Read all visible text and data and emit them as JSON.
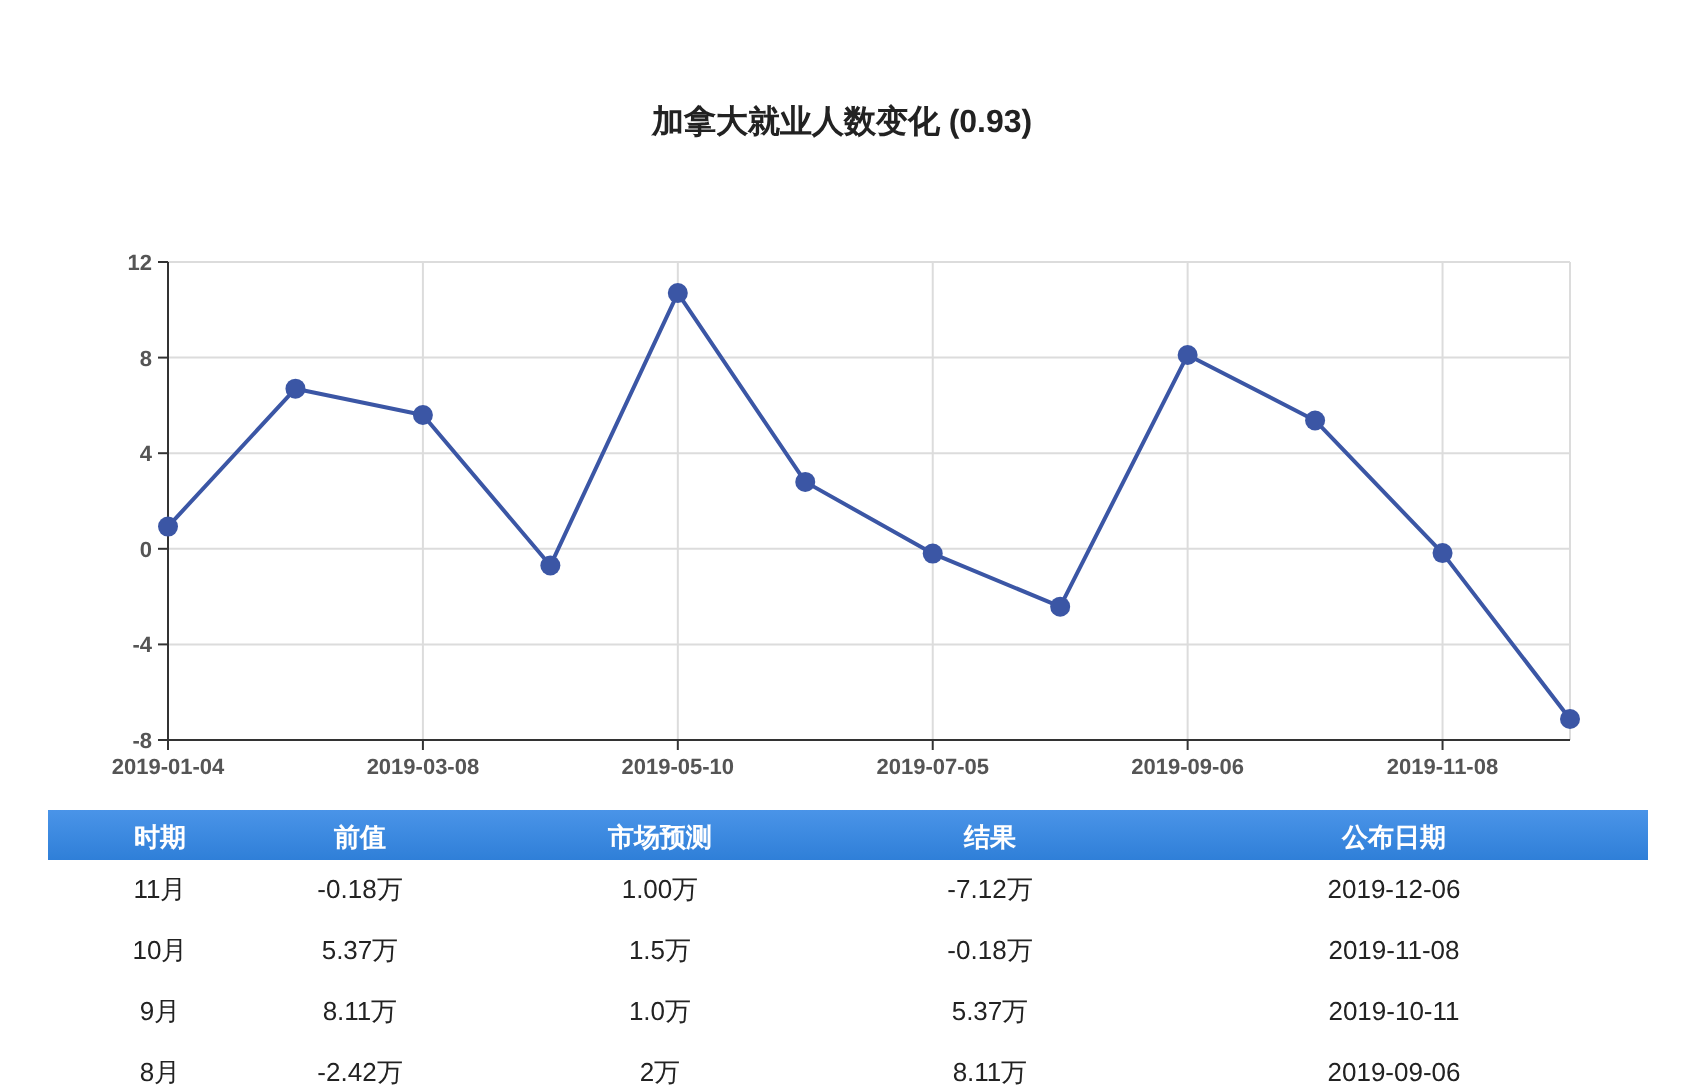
{
  "chart_data": [
    {
      "type": "line",
      "title": "加拿大就业人数变化 (0.93)",
      "categories": [
        "2019-01-04",
        null,
        "2019-03-08",
        null,
        "2019-05-10",
        null,
        "2019-07-05",
        null,
        "2019-09-06",
        null,
        "2019-11-08",
        null
      ],
      "series": [
        {
          "color": "#3b56a5",
          "values": [
            0.93,
            6.7,
            5.6,
            -0.7,
            10.7,
            2.8,
            -0.2,
            -2.42,
            8.11,
            5.37,
            -0.18,
            -7.12
          ]
        }
      ],
      "ylim": [
        -8,
        12
      ],
      "yticks": [
        -8,
        -4,
        0,
        4,
        8,
        12
      ],
      "grid": true,
      "marker": "circle",
      "line_style": "solid"
    },
    {
      "type": "heatmap",
      "ylabel": "时期",
      "categories": [
        "前值",
        "市场预测",
        "结果",
        "公布日期"
      ],
      "y_categories": [
        "11月",
        "10月",
        "9月",
        "8月"
      ],
      "cells": [
        [
          null,
          null,
          null,
          null
        ],
        [
          null,
          null,
          null,
          null
        ],
        [
          null,
          null,
          null,
          null
        ],
        [
          null,
          null,
          null,
          null
        ]
      ],
      "cell_labels": [
        [
          "-0.18万",
          "1.00万",
          "-7.12万",
          "2019-12-06"
        ],
        [
          "5.37万",
          "1.5万",
          "-0.18万",
          "2019-11-08"
        ],
        [
          "8.11万",
          "1.0万",
          "5.37万",
          "2019-10-11"
        ],
        [
          "-2.42万",
          "2万",
          "8.11万",
          "2019-09-06"
        ]
      ]
    }
  ]
}
